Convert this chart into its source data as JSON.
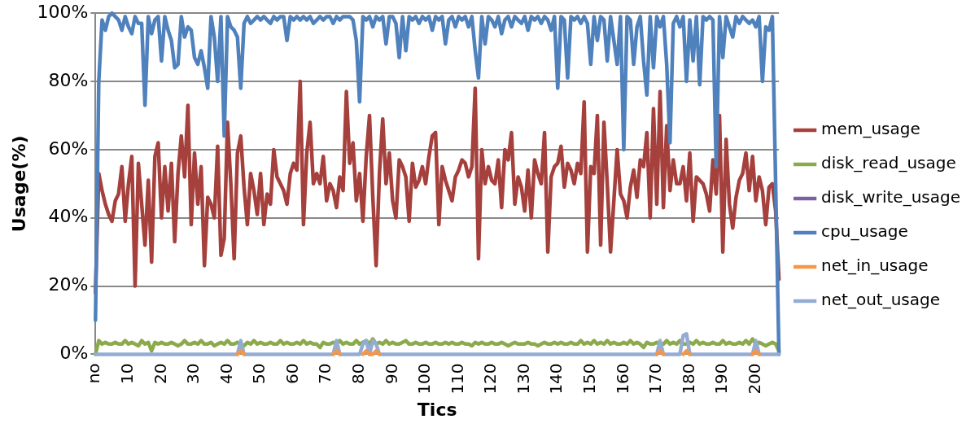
{
  "chart_data": {
    "type": "line",
    "xlabel": "Tics",
    "ylabel": "Usage(%)",
    "legend": "right",
    "grid": "y",
    "marker": "none",
    "ylim": [
      0,
      100
    ],
    "yticks": [
      {
        "value": 0,
        "label": "0%"
      },
      {
        "value": 20,
        "label": "20%"
      },
      {
        "value": 40,
        "label": "40%"
      },
      {
        "value": 60,
        "label": "60%"
      },
      {
        "value": 80,
        "label": "80%"
      },
      {
        "value": 100,
        "label": "100%"
      }
    ],
    "categories": [
      "no",
      null,
      null,
      null,
      null,
      null,
      null,
      null,
      null,
      null,
      "10",
      null,
      null,
      null,
      null,
      null,
      null,
      null,
      null,
      null,
      "20",
      null,
      null,
      null,
      null,
      null,
      null,
      null,
      null,
      null,
      "30",
      null,
      null,
      null,
      null,
      null,
      null,
      null,
      null,
      null,
      "40",
      null,
      null,
      null,
      null,
      null,
      null,
      null,
      null,
      null,
      "50",
      null,
      null,
      null,
      null,
      null,
      null,
      null,
      null,
      null,
      "60",
      null,
      null,
      null,
      null,
      null,
      null,
      null,
      null,
      null,
      "70",
      null,
      null,
      null,
      null,
      null,
      null,
      null,
      null,
      null,
      "80",
      null,
      null,
      null,
      null,
      null,
      null,
      null,
      null,
      null,
      "90",
      null,
      null,
      null,
      null,
      null,
      null,
      null,
      null,
      null,
      "100",
      null,
      null,
      null,
      null,
      null,
      null,
      null,
      null,
      null,
      "110",
      null,
      null,
      null,
      null,
      null,
      null,
      null,
      null,
      null,
      "120",
      null,
      null,
      null,
      null,
      null,
      null,
      null,
      null,
      null,
      "130",
      null,
      null,
      null,
      null,
      null,
      null,
      null,
      null,
      null,
      "140",
      null,
      null,
      null,
      null,
      null,
      null,
      null,
      null,
      null,
      "150",
      null,
      null,
      null,
      null,
      null,
      null,
      null,
      null,
      null,
      "160",
      null,
      null,
      null,
      null,
      null,
      null,
      null,
      null,
      null,
      "170",
      null,
      null,
      null,
      null,
      null,
      null,
      null,
      null,
      null,
      "180",
      null,
      null,
      null,
      null,
      null,
      null,
      null,
      null,
      null,
      "190",
      null,
      null,
      null,
      null,
      null,
      null,
      null,
      null,
      null,
      "200",
      null,
      null,
      null,
      null,
      null,
      null,
      null
    ],
    "series": [
      {
        "name": "mem_usage",
        "color": "#a5403d",
        "values": [
          18,
          53,
          48,
          44,
          41,
          39,
          45,
          47,
          55,
          39,
          50,
          58,
          20,
          56,
          44,
          32,
          51,
          27,
          58,
          62,
          40,
          55,
          42,
          56,
          33,
          53,
          64,
          52,
          73,
          38,
          59,
          44,
          55,
          26,
          46,
          44,
          40,
          61,
          29,
          34,
          68,
          50,
          28,
          59,
          64,
          49,
          38,
          53,
          48,
          41,
          53,
          38,
          47,
          44,
          60,
          52,
          50,
          48,
          44,
          53,
          56,
          54,
          80,
          38,
          59,
          68,
          50,
          53,
          50,
          58,
          45,
          50,
          48,
          43,
          52,
          48,
          77,
          56,
          62,
          45,
          53,
          39,
          58,
          70,
          46,
          26,
          53,
          69,
          50,
          59,
          45,
          40,
          57,
          55,
          52,
          39,
          56,
          49,
          51,
          55,
          50,
          58,
          64,
          65,
          38,
          55,
          51,
          48,
          45,
          52,
          54,
          57,
          56,
          52,
          55,
          78,
          28,
          60,
          50,
          55,
          51,
          50,
          57,
          43,
          60,
          57,
          65,
          44,
          52,
          49,
          42,
          54,
          40,
          57,
          53,
          50,
          65,
          30,
          52,
          55,
          56,
          61,
          49,
          56,
          54,
          50,
          56,
          53,
          74,
          30,
          55,
          53,
          70,
          32,
          68,
          50,
          30,
          45,
          60,
          47,
          45,
          40,
          49,
          54,
          46,
          57,
          55,
          65,
          40,
          72,
          44,
          77,
          43,
          67,
          48,
          57,
          50,
          50,
          55,
          45,
          59,
          39,
          52,
          51,
          50,
          47,
          42,
          57,
          47,
          70,
          30,
          63,
          44,
          37,
          46,
          51,
          53,
          59,
          48,
          58,
          45,
          52,
          48,
          38,
          49,
          50,
          42,
          22
        ]
      },
      {
        "name": "disk_read_usage",
        "color": "#8aaa4b",
        "values": [
          0,
          4,
          3,
          3.5,
          3,
          3,
          3.5,
          3,
          3,
          4,
          3,
          3.5,
          3,
          2.5,
          4,
          3,
          3.5,
          1,
          3.5,
          3,
          3.5,
          3,
          3,
          3.5,
          3,
          2.5,
          3,
          4,
          3,
          3,
          3.5,
          3,
          4,
          3,
          3,
          3.5,
          2.5,
          3,
          3.5,
          3,
          4,
          3,
          3,
          3.5,
          3,
          2.5,
          3.5,
          3,
          4,
          3,
          3.5,
          3,
          3,
          3.5,
          3,
          3,
          4,
          3,
          3.5,
          3,
          3,
          3.5,
          3,
          4,
          3,
          3.5,
          3,
          3,
          2,
          3.5,
          3,
          3,
          3.5,
          3,
          4,
          3,
          3.5,
          3,
          3,
          4,
          3,
          3.5,
          4,
          3,
          4.5,
          3,
          3.5,
          3,
          4,
          3,
          3.5,
          3,
          3,
          3.5,
          4,
          3,
          3,
          3.5,
          3,
          3,
          3.5,
          3,
          3,
          3.5,
          3,
          3,
          3.5,
          3,
          3.5,
          3,
          3,
          3.5,
          3,
          3,
          2.5,
          3.5,
          3,
          3.5,
          3,
          3,
          3.5,
          3,
          3,
          3.5,
          3,
          2.5,
          3,
          3.5,
          3,
          3,
          3,
          3.5,
          3,
          3,
          2.5,
          3,
          3.5,
          3,
          3,
          3.5,
          3,
          3.5,
          3,
          3,
          3.5,
          3,
          3,
          4,
          3,
          3.5,
          3,
          4,
          3,
          3.5,
          3,
          4,
          3,
          3.5,
          3,
          3,
          3.5,
          3,
          4,
          3,
          3.5,
          3,
          2,
          3.5,
          3,
          3,
          3.5,
          3,
          3,
          4,
          3,
          3.5,
          3,
          4,
          3,
          3,
          3.5,
          3,
          4,
          3,
          3.5,
          3,
          3,
          3.5,
          3,
          3,
          4,
          3,
          3.5,
          3,
          3,
          3.5,
          3,
          4,
          3,
          4.5,
          3,
          3.5,
          3,
          2.5,
          3,
          3.5,
          3,
          1
        ]
      },
      {
        "name": "disk_write_usage",
        "color": "#7d60a0",
        "values": [
          null,
          null,
          null,
          null,
          null,
          null,
          null,
          null,
          null,
          null,
          null,
          null,
          null,
          null,
          null,
          null,
          null,
          null,
          null,
          null,
          null,
          null,
          null,
          null,
          null,
          null,
          null,
          null,
          null,
          null,
          null,
          null,
          null,
          null,
          null,
          null,
          null,
          null,
          null,
          null,
          null,
          null,
          null,
          null,
          null,
          null,
          null,
          null,
          null,
          null,
          null,
          null,
          null,
          null,
          null,
          null,
          null,
          null,
          null,
          null,
          null,
          null,
          null,
          null,
          null,
          null,
          null,
          null,
          null,
          null,
          null,
          null,
          null,
          null,
          null,
          null,
          null,
          null,
          null,
          null,
          null,
          null,
          null,
          null,
          null,
          null,
          null,
          null,
          null,
          null,
          null,
          null,
          null,
          null,
          null,
          null,
          null,
          null,
          null,
          null,
          null,
          null,
          null,
          null,
          null,
          null,
          null,
          null,
          null,
          null,
          null,
          null,
          null,
          null,
          null,
          null,
          null,
          null,
          null,
          null,
          null,
          null,
          null,
          null,
          null,
          null,
          null,
          null,
          null,
          null,
          null,
          null,
          null,
          null,
          null,
          null,
          null,
          null,
          null,
          null,
          null,
          null,
          null,
          null,
          null,
          null,
          null,
          null,
          null,
          null,
          null,
          null,
          null,
          null,
          null,
          null,
          null,
          null,
          null,
          null,
          null,
          null,
          null,
          null,
          null,
          null,
          null,
          null,
          null,
          null,
          null,
          null,
          null,
          null,
          null,
          null,
          null,
          null,
          null,
          null,
          null,
          null,
          null,
          null,
          null,
          null,
          null,
          null,
          null,
          null,
          null,
          null,
          null,
          null,
          null,
          null,
          null,
          null,
          null,
          null,
          null,
          null,
          null,
          null,
          null,
          null,
          null,
          null
        ]
      },
      {
        "name": "cpu_usage",
        "color": "#4f81bd",
        "values": [
          10,
          80,
          98,
          95,
          99,
          100,
          99,
          98,
          95,
          99,
          96,
          94,
          99,
          97,
          97,
          73,
          99,
          94,
          98,
          99,
          86,
          99,
          95,
          92,
          84,
          85,
          99,
          93,
          96,
          95,
          87,
          85,
          89,
          84,
          78,
          99,
          93,
          80,
          99,
          64,
          99,
          96,
          95,
          93,
          78,
          97,
          99,
          97,
          98,
          99,
          98,
          99,
          98,
          97,
          99,
          98,
          99,
          99,
          92,
          99,
          98,
          99,
          98,
          99,
          98,
          99,
          97,
          98,
          99,
          98,
          99,
          99,
          97,
          99,
          98,
          99,
          99,
          99,
          98,
          92,
          74,
          99,
          98,
          99,
          96,
          99,
          98,
          99,
          91,
          99,
          99,
          97,
          87,
          99,
          89,
          99,
          98,
          99,
          97,
          99,
          98,
          99,
          95,
          99,
          98,
          99,
          91,
          98,
          99,
          96,
          99,
          98,
          99,
          96,
          99,
          89,
          81,
          99,
          91,
          99,
          98,
          96,
          99,
          94,
          98,
          99,
          96,
          99,
          98,
          97,
          99,
          95,
          99,
          98,
          99,
          97,
          99,
          98,
          95,
          99,
          78,
          99,
          98,
          81,
          99,
          98,
          99,
          97,
          99,
          97,
          85,
          99,
          92,
          99,
          98,
          86,
          99,
          92,
          85,
          99,
          60,
          99,
          98,
          85,
          96,
          99,
          86,
          76,
          99,
          84,
          99,
          96,
          99,
          85,
          62,
          97,
          99,
          96,
          99,
          80,
          98,
          86,
          99,
          79,
          99,
          98,
          99,
          98,
          55,
          99,
          87,
          99,
          96,
          93,
          99,
          97,
          99,
          98,
          97,
          98,
          96,
          99,
          80,
          96,
          95,
          99,
          50,
          0
        ]
      },
      {
        "name": "net_in_usage",
        "color": "#f79646",
        "values": [
          null,
          null,
          null,
          null,
          null,
          null,
          null,
          null,
          null,
          null,
          null,
          null,
          null,
          null,
          null,
          null,
          null,
          null,
          null,
          null,
          null,
          null,
          null,
          null,
          null,
          null,
          null,
          null,
          null,
          null,
          null,
          null,
          null,
          null,
          null,
          null,
          null,
          null,
          null,
          null,
          null,
          null,
          null,
          0,
          1,
          0,
          null,
          null,
          null,
          null,
          null,
          null,
          null,
          null,
          null,
          null,
          null,
          null,
          null,
          null,
          null,
          null,
          null,
          null,
          null,
          null,
          null,
          null,
          null,
          null,
          null,
          null,
          0,
          1,
          0,
          null,
          null,
          null,
          null,
          null,
          null,
          0,
          1,
          0,
          0,
          1,
          0,
          null,
          null,
          null,
          null,
          null,
          null,
          null,
          null,
          null,
          null,
          null,
          null,
          null,
          null,
          null,
          null,
          null,
          null,
          null,
          null,
          null,
          null,
          null,
          null,
          null,
          null,
          null,
          null,
          null,
          null,
          null,
          null,
          null,
          null,
          null,
          null,
          null,
          null,
          null,
          null,
          null,
          null,
          null,
          null,
          null,
          null,
          null,
          null,
          null,
          null,
          null,
          null,
          null,
          null,
          null,
          null,
          null,
          null,
          null,
          null,
          null,
          null,
          null,
          null,
          null,
          null,
          null,
          null,
          null,
          null,
          null,
          null,
          null,
          null,
          null,
          null,
          null,
          null,
          null,
          null,
          null,
          null,
          null,
          0,
          1,
          0,
          null,
          null,
          null,
          null,
          null,
          0,
          1,
          0,
          null,
          null,
          null,
          null,
          null,
          null,
          null,
          null,
          null,
          null,
          null,
          null,
          null,
          null,
          null,
          null,
          null,
          null,
          0,
          1,
          0,
          null,
          null,
          null,
          null,
          null,
          null
        ]
      },
      {
        "name": "net_out_usage",
        "color": "#94acd4",
        "values": [
          0,
          0,
          0,
          0,
          0,
          0,
          0,
          0,
          0,
          0,
          0,
          0,
          0,
          0,
          0,
          0,
          0,
          0,
          0,
          0,
          0,
          0,
          0,
          0,
          0,
          0,
          0,
          0,
          0,
          0,
          0,
          0,
          0,
          0,
          0,
          0,
          0,
          0,
          0,
          0,
          0,
          0,
          0,
          0,
          4,
          0,
          0,
          0,
          0,
          0,
          0,
          0,
          0,
          0,
          0,
          0,
          0,
          0,
          0,
          0,
          0,
          0,
          0,
          0,
          0,
          0,
          0,
          0,
          0,
          0,
          0,
          0,
          0,
          4,
          0,
          0,
          0,
          0,
          0,
          0,
          0,
          3,
          4,
          0,
          4,
          3,
          0,
          0,
          0,
          0,
          0,
          0,
          0,
          0,
          0,
          0,
          0,
          0,
          0,
          0,
          0,
          0,
          0,
          0,
          0,
          0,
          0,
          0,
          0,
          0,
          0,
          0,
          0,
          0,
          0,
          0,
          0,
          0,
          0,
          0,
          0,
          0,
          0,
          0,
          0,
          0,
          0,
          0,
          0,
          0,
          0,
          0,
          0,
          0,
          0,
          0,
          0,
          0,
          0,
          0,
          0,
          0,
          0,
          0,
          0,
          0,
          0,
          0,
          0,
          0,
          0,
          0,
          0,
          0,
          0,
          0,
          0,
          0,
          0,
          0,
          0,
          0,
          0,
          0,
          0,
          0,
          0,
          0,
          0,
          0,
          0,
          4,
          0,
          0,
          0,
          0,
          0,
          0,
          5.5,
          6,
          0,
          0,
          0,
          0,
          0,
          0,
          0,
          0,
          0,
          0,
          0,
          0,
          0,
          0,
          0,
          0,
          0,
          0,
          0,
          0,
          4,
          0,
          0,
          0,
          0,
          0,
          0,
          0
        ]
      }
    ]
  }
}
